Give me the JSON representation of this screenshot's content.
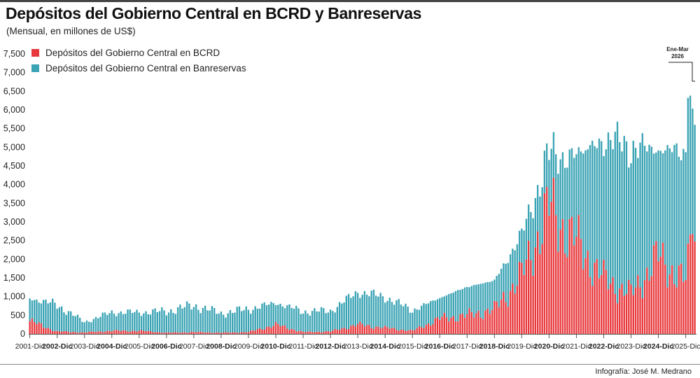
{
  "header": {
    "title": "Depósitos del Gobierno Central en BCRD y Banreservas",
    "subtitle": "(Mensual, en millones de US$)"
  },
  "credit": "Infografía: José M. Medrano",
  "annotation": {
    "line1": "Ene-Mar",
    "line2": "2026"
  },
  "colors": {
    "bcrd": "#e8383c",
    "banreservas": "#3aa3b4",
    "axis": "#555555",
    "grid": "#bbbbbb"
  },
  "chart_data": {
    "type": "bar",
    "stacked": true,
    "grid": false,
    "legend_position": "top-left",
    "title": "Depósitos del Gobierno Central en BCRD y Banreservas",
    "subtitle": "(Mensual, en millones de US$)",
    "xlabel": "",
    "ylabel": "",
    "ylim": [
      0,
      7500
    ],
    "yticks": [
      0,
      500,
      1000,
      1500,
      2000,
      2500,
      3000,
      3500,
      4000,
      4500,
      5000,
      5500,
      6000,
      6500,
      7000,
      7500
    ],
    "ytick_labels": [
      "0",
      "500",
      "1,000",
      "1,500",
      "2,000",
      "2,500",
      "3,000",
      "3,500",
      "4,000",
      "4,500",
      "5,000",
      "5,500",
      "6,000",
      "6,500",
      "7,000",
      "7,500"
    ],
    "x_range": [
      "2001-Dic",
      "2026-Mar"
    ],
    "period_annotation": "Ene-Mar 2026",
    "tick_labels": [
      {
        "label": "2001-Dic",
        "bold": false
      },
      {
        "label": "2002-Dic",
        "bold": true
      },
      {
        "label": "2003-Dic",
        "bold": false
      },
      {
        "label": "2004-Dic",
        "bold": true
      },
      {
        "label": "2005-Dic",
        "bold": false
      },
      {
        "label": "2006-Dic",
        "bold": true
      },
      {
        "label": "2007-Dic",
        "bold": false
      },
      {
        "label": "2008-Dic",
        "bold": true
      },
      {
        "label": "2009-Dic",
        "bold": false
      },
      {
        "label": "2010-Dic",
        "bold": true
      },
      {
        "label": "2011-Dic",
        "bold": false
      },
      {
        "label": "2012-Dic",
        "bold": true
      },
      {
        "label": "2013-Dic",
        "bold": false
      },
      {
        "label": "2014-Dic",
        "bold": true
      },
      {
        "label": "2015-Dic",
        "bold": false
      },
      {
        "label": "2016-Dic",
        "bold": true
      },
      {
        "label": "2017-Dic",
        "bold": false
      },
      {
        "label": "2018-Dic",
        "bold": true
      },
      {
        "label": "2019-Dic",
        "bold": false
      },
      {
        "label": "2020-Dic",
        "bold": true
      },
      {
        "label": "2021-Dic",
        "bold": false
      },
      {
        "label": "2022-Dic",
        "bold": true
      },
      {
        "label": "2023-Dic",
        "bold": false
      },
      {
        "label": "2024-Dic",
        "bold": true
      },
      {
        "label": "2025-Dic",
        "bold": false
      }
    ],
    "series": [
      {
        "name": "Depósitos del Gobierno Central en BCRD",
        "color": "#e8383c"
      },
      {
        "name": "Depósitos del Gobierno Central en Banreservas",
        "color": "#3aa3b4"
      }
    ],
    "months": [
      "2001-Dic",
      "2002-Dic",
      "2003-Dic",
      "2004-Dic",
      "2005-Dic",
      "2006-Dic",
      "2007-Dic",
      "2008-Dic",
      "2009-Dic",
      "2010-Dic",
      "2011-Dic",
      "2012-Dic",
      "2013-Dic",
      "2014-Dic",
      "2015-Dic",
      "2016-Dic",
      "2017-Dic",
      "2018-Dic",
      "2019-Dic",
      "2020-Dic",
      "2021-Dic",
      "2022-Dic",
      "2023-Dic",
      "2024-Dic",
      "2025-Dic",
      "2026-Mar"
    ],
    "values_bcrd": [
      420,
      80,
      50,
      100,
      100,
      40,
      60,
      40,
      60,
      300,
      60,
      80,
      300,
      200,
      100,
      500,
      600,
      800,
      1900,
      4100,
      3000,
      1800,
      1300,
      2500,
      1700,
      2700
    ],
    "values_banreservas": [
      550,
      650,
      250,
      450,
      450,
      520,
      650,
      470,
      560,
      530,
      500,
      500,
      800,
      750,
      500,
      500,
      700,
      700,
      1000,
      1300,
      2100,
      3400,
      3600,
      2600,
      3200,
      3900
    ]
  }
}
